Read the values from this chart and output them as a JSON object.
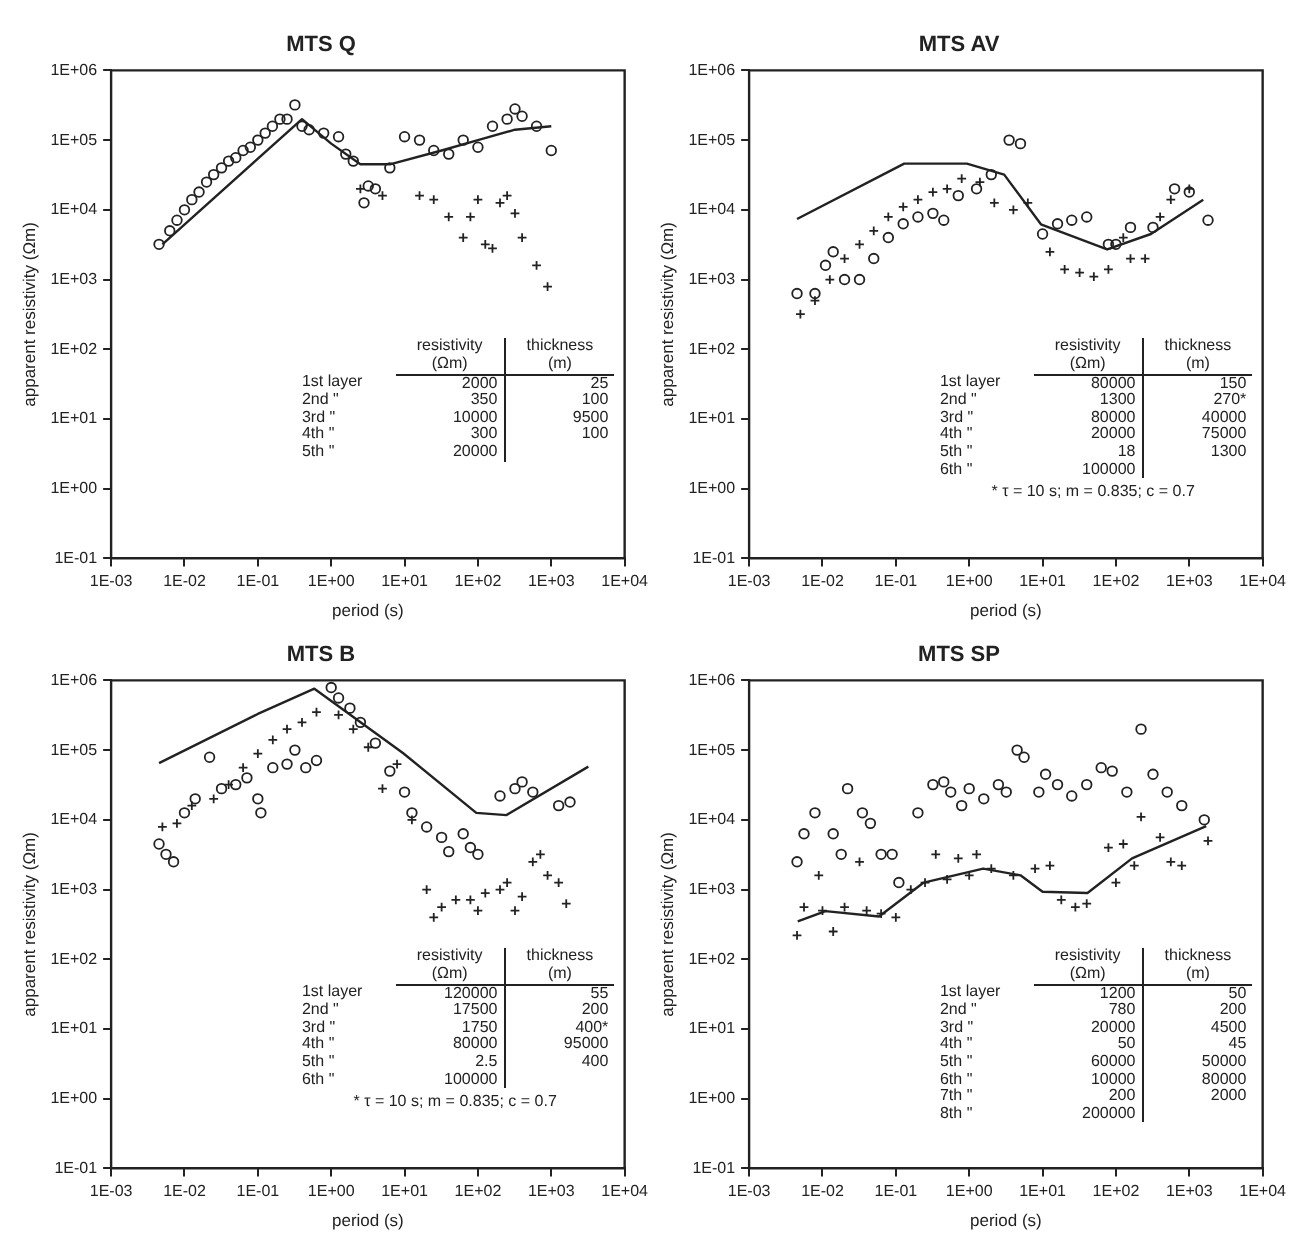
{
  "chart_data": [
    {
      "type": "scatter",
      "title": "MTS Q",
      "xlabel": "period (s)",
      "ylabel": "apparent resistivity (Ωm)",
      "log": "xy",
      "xlim": [
        0.001,
        10000
      ],
      "ylim": [
        0.1,
        1000000
      ],
      "xticks": [
        {
          "value": 0.001,
          "label": "1E-03"
        },
        {
          "value": 0.01,
          "label": "1E-02"
        },
        {
          "value": 0.1,
          "label": "1E-01"
        },
        {
          "value": 1,
          "label": "1E+00"
        },
        {
          "value": 10,
          "label": "1E+01"
        },
        {
          "value": 100,
          "label": "1E+02"
        },
        {
          "value": 1000,
          "label": "1E+03"
        },
        {
          "value": 10000,
          "label": "1E+04"
        }
      ],
      "yticks": [
        {
          "value": 0.1,
          "label": "1E-01"
        },
        {
          "value": 1,
          "label": "1E+00"
        },
        {
          "value": 10,
          "label": "1E+01"
        },
        {
          "value": 100,
          "label": "1E+02"
        },
        {
          "value": 1000,
          "label": "1E+03"
        },
        {
          "value": 10000,
          "label": "1E+04"
        },
        {
          "value": 100000,
          "label": "1E+05"
        },
        {
          "value": 1000000,
          "label": "1E+06"
        }
      ],
      "series": [
        {
          "type": "scatter",
          "marker": "circle",
          "color": "#222222",
          "x": [
            0.0045,
            0.0063,
            0.0079,
            0.01,
            0.0126,
            0.0158,
            0.02,
            0.025,
            0.032,
            0.04,
            0.05,
            0.063,
            0.079,
            0.1,
            0.126,
            0.158,
            0.2,
            0.25,
            0.32,
            0.4,
            0.5,
            0.79,
            1.26,
            1.58,
            2,
            2.8,
            3.2,
            4,
            6.3,
            10,
            16,
            25,
            40,
            63,
            100,
            158,
            250,
            320,
            400,
            630,
            1000
          ],
          "values": [
            3200,
            5000,
            7100,
            10000,
            14000,
            18000,
            25000,
            32000,
            40000,
            50000,
            56000,
            71000,
            79000,
            100000,
            126000,
            158000,
            200000,
            200000,
            320000,
            158000,
            141000,
            126000,
            112000,
            63000,
            50000,
            12600,
            22000,
            20000,
            40000,
            112000,
            100000,
            71000,
            63000,
            100000,
            79000,
            158000,
            200000,
            280000,
            220000,
            158000,
            71000
          ]
        },
        {
          "type": "scatter",
          "marker": "cross",
          "color": "#222222",
          "x": [
            2.5,
            5,
            16,
            25,
            40,
            63,
            79,
            100,
            126,
            158,
            200,
            250,
            320,
            400,
            630,
            890
          ],
          "values": [
            20000,
            16000,
            16000,
            14000,
            7900,
            4000,
            7900,
            14000,
            3200,
            2800,
            12600,
            16000,
            8900,
            4000,
            1600,
            790
          ]
        },
        {
          "type": "line",
          "marker": "none",
          "color": "#222222",
          "x": [
            0.005,
            0.4,
            1,
            2.5,
            6.3,
            32,
            100,
            320,
            1000
          ],
          "values": [
            3200,
            200000,
            89000,
            45000,
            45000,
            71000,
            100000,
            141000,
            158000
          ]
        }
      ],
      "annotations": [
        "resistivity (Ωm)",
        "thickness (m)",
        "1st layer",
        "2000",
        "25",
        "2nd \"",
        "350",
        "100",
        "3rd \"",
        "10000",
        "9500",
        "4th \"",
        "300",
        "100",
        "5th \"",
        "20000"
      ]
    },
    {
      "type": "scatter",
      "title": "MTS AV",
      "xlabel": "period (s)",
      "ylabel": "apparent resistivity (Ωm)",
      "log": "xy",
      "xlim": [
        0.001,
        10000
      ],
      "ylim": [
        0.1,
        1000000
      ],
      "xticks": [
        {
          "value": 0.001,
          "label": "1E-03"
        },
        {
          "value": 0.01,
          "label": "1E-02"
        },
        {
          "value": 0.1,
          "label": "1E-01"
        },
        {
          "value": 1,
          "label": "1E+00"
        },
        {
          "value": 10,
          "label": "1E+01"
        },
        {
          "value": 100,
          "label": "1E+02"
        },
        {
          "value": 1000,
          "label": "1E+03"
        },
        {
          "value": 10000,
          "label": "1E+04"
        }
      ],
      "yticks": [
        {
          "value": 0.1,
          "label": "1E-01"
        },
        {
          "value": 1,
          "label": "1E+00"
        },
        {
          "value": 10,
          "label": "1E+01"
        },
        {
          "value": 100,
          "label": "1E+02"
        },
        {
          "value": 1000,
          "label": "1E+03"
        },
        {
          "value": 10000,
          "label": "1E+04"
        },
        {
          "value": 100000,
          "label": "1E+05"
        },
        {
          "value": 1000000,
          "label": "1E+06"
        }
      ],
      "series": [
        {
          "type": "scatter",
          "marker": "circle",
          "color": "#222222",
          "x": [
            0.0045,
            0.0079,
            0.011,
            0.014,
            0.02,
            0.032,
            0.05,
            0.079,
            0.126,
            0.2,
            0.32,
            0.45,
            0.71,
            1.26,
            2,
            3.5,
            5,
            10,
            16,
            25,
            40,
            79,
            100,
            158,
            320,
            630,
            1000,
            1800
          ],
          "values": [
            630,
            630,
            1600,
            2500,
            1000,
            1000,
            2000,
            4000,
            6300,
            7900,
            8900,
            7100,
            16000,
            20000,
            32000,
            100000,
            89000,
            4500,
            6300,
            7100,
            7900,
            3200,
            3200,
            5600,
            5600,
            20000,
            18000,
            7100
          ]
        },
        {
          "type": "scatter",
          "marker": "cross",
          "color": "#222222",
          "x": [
            0.005,
            0.0079,
            0.0126,
            0.02,
            0.032,
            0.05,
            0.079,
            0.126,
            0.2,
            0.32,
            0.5,
            0.79,
            1.4,
            2.2,
            4,
            6.3,
            12.6,
            20,
            32,
            50,
            79,
            126,
            158,
            250,
            400,
            560,
            1000
          ],
          "values": [
            320,
            500,
            1000,
            2000,
            3200,
            5000,
            7900,
            11000,
            14000,
            18000,
            20000,
            28000,
            25000,
            12600,
            10000,
            12600,
            2500,
            1400,
            1260,
            1100,
            1400,
            4000,
            2000,
            2000,
            7900,
            14000,
            20000
          ]
        },
        {
          "type": "line",
          "marker": "none",
          "color": "#222222",
          "x": [
            0.0045,
            0.13,
            0.93,
            3,
            9.5,
            76,
            300,
            1550
          ],
          "values": [
            7400,
            46000,
            46000,
            32000,
            6200,
            2700,
            4500,
            14000
          ]
        }
      ],
      "annotations": [
        "resistivity (Ωm)",
        "thickness (m)",
        "1st layer",
        "80000",
        "150",
        "2nd \"",
        "1300",
        "270*",
        "3rd \"",
        "80000",
        "40000",
        "4th \"",
        "20000",
        "75000",
        "5th \"",
        "18",
        "1300",
        "6th \"",
        "100000",
        "* τ = 10 s; m = 0.835; c = 0.7"
      ]
    },
    {
      "type": "scatter",
      "title": "MTS B",
      "xlabel": "period (s)",
      "ylabel": "apparent resistivity (Ωm)",
      "log": "xy",
      "xlim": [
        0.001,
        10000
      ],
      "ylim": [
        0.1,
        1000000
      ],
      "xticks": [
        {
          "value": 0.001,
          "label": "1E-03"
        },
        {
          "value": 0.01,
          "label": "1E-02"
        },
        {
          "value": 0.1,
          "label": "1E-01"
        },
        {
          "value": 1,
          "label": "1E+00"
        },
        {
          "value": 10,
          "label": "1E+01"
        },
        {
          "value": 100,
          "label": "1E+02"
        },
        {
          "value": 1000,
          "label": "1E+03"
        },
        {
          "value": 10000,
          "label": "1E+04"
        }
      ],
      "yticks": [
        {
          "value": 0.1,
          "label": "1E-01"
        },
        {
          "value": 1,
          "label": "1E+00"
        },
        {
          "value": 10,
          "label": "1E+01"
        },
        {
          "value": 100,
          "label": "1E+02"
        },
        {
          "value": 1000,
          "label": "1E+03"
        },
        {
          "value": 10000,
          "label": "1E+04"
        },
        {
          "value": 100000,
          "label": "1E+05"
        },
        {
          "value": 1000000,
          "label": "1E+06"
        }
      ],
      "series": [
        {
          "type": "scatter",
          "marker": "circle",
          "color": "#222222",
          "x": [
            0.0045,
            0.0056,
            0.0071,
            0.01,
            0.014,
            0.022,
            0.032,
            0.05,
            0.071,
            0.1,
            0.11,
            0.16,
            0.25,
            0.32,
            0.45,
            0.63,
            1,
            1.26,
            1.8,
            2.5,
            4,
            6.3,
            10,
            12.6,
            20,
            32,
            40,
            63,
            79,
            100,
            200,
            320,
            400,
            560,
            1260,
            1800
          ],
          "values": [
            4500,
            3200,
            2500,
            12600,
            20000,
            79000,
            28000,
            32000,
            40000,
            20000,
            12600,
            56000,
            63000,
            100000,
            56000,
            71000,
            790000,
            560000,
            400000,
            250000,
            126000,
            50000,
            25000,
            12600,
            7900,
            5600,
            3500,
            6300,
            4000,
            3200,
            22000,
            28000,
            35000,
            25000,
            16000,
            18000
          ]
        },
        {
          "type": "scatter",
          "marker": "cross",
          "color": "#222222",
          "x": [
            0.005,
            0.0079,
            0.0126,
            0.025,
            0.04,
            0.063,
            0.1,
            0.16,
            0.25,
            0.4,
            0.63,
            1.26,
            2,
            3.2,
            5,
            7.9,
            12.6,
            20,
            25,
            32,
            50,
            79,
            100,
            126,
            200,
            250,
            320,
            400,
            560,
            710,
            890,
            1260,
            1600
          ],
          "values": [
            7900,
            8900,
            16000,
            20000,
            32000,
            56000,
            89000,
            140000,
            200000,
            250000,
            350000,
            320000,
            200000,
            110000,
            28000,
            63000,
            10000,
            1000,
            400,
            560,
            710,
            710,
            500,
            890,
            1000,
            1260,
            500,
            790,
            2500,
            3200,
            1600,
            1260,
            630
          ]
        },
        {
          "type": "line",
          "marker": "none",
          "color": "#222222",
          "x": [
            0.0045,
            0.1,
            0.59,
            9.5,
            95,
            245,
            3200
          ],
          "values": [
            65000,
            330000,
            760000,
            91000,
            12600,
            11700,
            58000
          ]
        }
      ],
      "annotations": [
        "resistivity (Ωm)",
        "thickness (m)",
        "1st layer",
        "120000",
        "55",
        "2nd \"",
        "17500",
        "200",
        "3rd \"",
        "1750",
        "400*",
        "4th \"",
        "80000",
        "95000",
        "5th \"",
        "2.5",
        "400",
        "6th \"",
        "100000",
        "* τ = 10 s; m = 0.835; c = 0.7"
      ]
    },
    {
      "type": "scatter",
      "title": "MTS SP",
      "xlabel": "period (s)",
      "ylabel": "apparent resistivity (Ωm)",
      "log": "xy",
      "xlim": [
        0.001,
        10000
      ],
      "ylim": [
        0.1,
        1000000
      ],
      "xticks": [
        {
          "value": 0.001,
          "label": "1E-03"
        },
        {
          "value": 0.01,
          "label": "1E-02"
        },
        {
          "value": 0.1,
          "label": "1E-01"
        },
        {
          "value": 1,
          "label": "1E+00"
        },
        {
          "value": 10,
          "label": "1E+01"
        },
        {
          "value": 100,
          "label": "1E+02"
        },
        {
          "value": 1000,
          "label": "1E+03"
        },
        {
          "value": 10000,
          "label": "1E+04"
        }
      ],
      "yticks": [
        {
          "value": 0.1,
          "label": "1E-01"
        },
        {
          "value": 1,
          "label": "1E+00"
        },
        {
          "value": 10,
          "label": "1E+01"
        },
        {
          "value": 100,
          "label": "1E+02"
        },
        {
          "value": 1000,
          "label": "1E+03"
        },
        {
          "value": 10000,
          "label": "1E+04"
        },
        {
          "value": 100000,
          "label": "1E+05"
        },
        {
          "value": 1000000,
          "label": "1E+06"
        }
      ],
      "series": [
        {
          "type": "scatter",
          "marker": "circle",
          "color": "#222222",
          "x": [
            0.0045,
            0.0056,
            0.0079,
            0.014,
            0.018,
            0.022,
            0.035,
            0.045,
            0.063,
            0.089,
            0.11,
            0.2,
            0.32,
            0.45,
            0.56,
            0.79,
            1,
            1.58,
            2.5,
            3.2,
            4.5,
            5.6,
            8.9,
            11,
            16,
            25,
            40,
            63,
            89,
            141,
            220,
            320,
            500,
            790,
            1600
          ],
          "values": [
            2500,
            6300,
            12600,
            6300,
            3200,
            28000,
            12600,
            8900,
            3200,
            3200,
            1260,
            12600,
            32000,
            35000,
            25000,
            16000,
            28000,
            20000,
            32000,
            25000,
            100000,
            79000,
            25000,
            45000,
            32000,
            22000,
            32000,
            56000,
            50000,
            25000,
            200000,
            45000,
            25000,
            16000,
            10000
          ]
        },
        {
          "type": "scatter",
          "marker": "cross",
          "color": "#222222",
          "x": [
            0.0045,
            0.0056,
            0.0089,
            0.01,
            0.014,
            0.02,
            0.032,
            0.04,
            0.063,
            0.1,
            0.16,
            0.25,
            0.35,
            0.5,
            0.71,
            1,
            1.26,
            2,
            4,
            7.9,
            12.6,
            18,
            28,
            40,
            79,
            100,
            126,
            178,
            220,
            400,
            560,
            790,
            1800
          ],
          "values": [
            220,
            560,
            1600,
            500,
            250,
            560,
            2500,
            500,
            450,
            400,
            1000,
            1260,
            3200,
            1400,
            2800,
            1600,
            3200,
            2000,
            1600,
            2000,
            2200,
            710,
            560,
            630,
            4000,
            1260,
            4500,
            2200,
            11000,
            5600,
            2500,
            2200,
            5000
          ]
        },
        {
          "type": "line",
          "marker": "none",
          "color": "#222222",
          "x": [
            0.0046,
            0.011,
            0.059,
            0.24,
            1.55,
            5,
            10,
            41,
            166,
            1700
          ],
          "values": [
            350,
            490,
            410,
            1260,
            2000,
            1600,
            930,
            890,
            2800,
            8100
          ]
        }
      ],
      "annotations": [
        "resistivity (Ωm)",
        "thickness (m)",
        "1st layer",
        "1200",
        "50",
        "2nd \"",
        "780",
        "200",
        "3rd \"",
        "20000",
        "4500",
        "4th \"",
        "50",
        "45",
        "5th \"",
        "60000",
        "50000",
        "6th \"",
        "10000",
        "80000",
        "7th \"",
        "200",
        "2000",
        "8th \"",
        "200000"
      ]
    }
  ]
}
